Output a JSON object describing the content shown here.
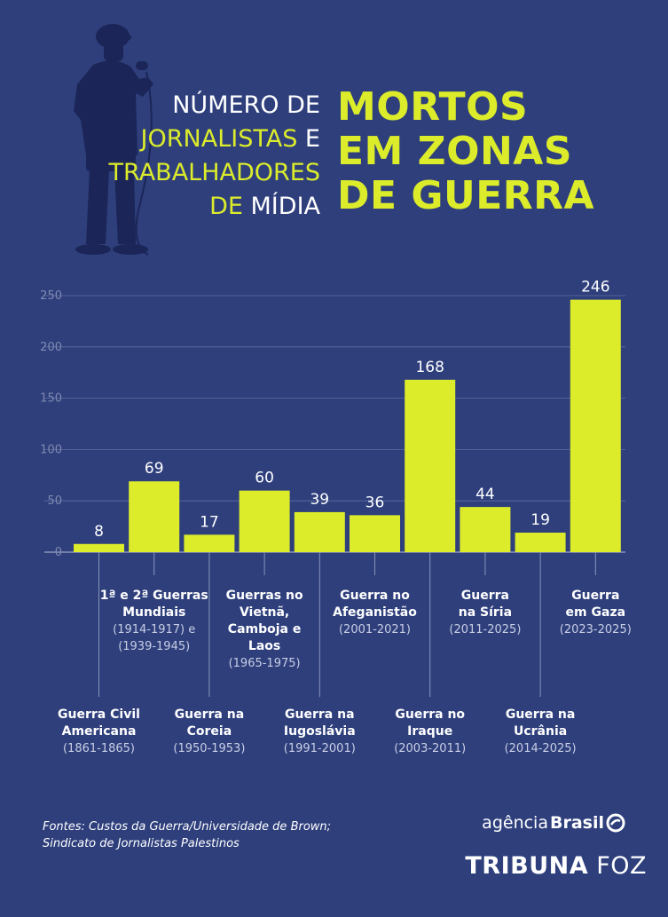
{
  "header": {
    "left_lines": [
      {
        "text": "NÚMERO DE",
        "color": "white"
      },
      {
        "text": "JORNALISTAS",
        "color": "yellow",
        "suffix": " E"
      },
      {
        "text": "TRABALHADORES",
        "color": "yellow"
      },
      {
        "text": "DE MÍDIA",
        "color": "yellow_white"
      }
    ],
    "line1": "NÚMERO DE",
    "line2a": "JORNALISTAS",
    "line2b": " E",
    "line3": "TRABALHADORES",
    "line4a": "DE ",
    "line4b": "MÍDIA",
    "right_lines": [
      "MORTOS",
      "EM ZONAS",
      "DE GUERRA"
    ]
  },
  "colors": {
    "background": "#2e3f7c",
    "accent": "#dcec2b",
    "axis": "#8a94b8",
    "silhouette": "#1b2557"
  },
  "chart_data": {
    "type": "bar",
    "ylim": [
      0,
      250
    ],
    "yticks": [
      "0",
      "50",
      "100",
      "150",
      "200",
      "250"
    ],
    "grid": true,
    "categories": [
      {
        "name": [
          "Guerra Civil",
          "Americana"
        ],
        "period": [
          "(1861-1865)"
        ]
      },
      {
        "name": [
          "1ª e 2ª Guerras",
          "Mundiais"
        ],
        "period": [
          "(1914-1917) e",
          "(1939-1945)"
        ]
      },
      {
        "name": [
          "Guerra na",
          "Coreia"
        ],
        "period": [
          "(1950-1953)"
        ]
      },
      {
        "name": [
          "Guerras no",
          "Vietnã,",
          "Camboja e",
          "Laos"
        ],
        "period": [
          "(1965-1975)"
        ]
      },
      {
        "name": [
          "Guerra na",
          "Iugoslávia"
        ],
        "period": [
          "(1991-2001)"
        ]
      },
      {
        "name": [
          "Guerra no",
          "Afeganistão"
        ],
        "period": [
          "(2001-2021)"
        ]
      },
      {
        "name": [
          "Guerra no",
          "Iraque"
        ],
        "period": [
          "(2003-2011)"
        ]
      },
      {
        "name": [
          "Guerra",
          "na Síria"
        ],
        "period": [
          "(2011-2025)"
        ]
      },
      {
        "name": [
          "Guerra na",
          "Ucrânia"
        ],
        "period": [
          "(2014-2025)"
        ]
      },
      {
        "name": [
          "Guerra",
          "em Gaza"
        ],
        "period": [
          "(2023-2025)"
        ]
      }
    ],
    "values": [
      8,
      69,
      17,
      60,
      39,
      36,
      168,
      44,
      19,
      246
    ]
  },
  "sources": {
    "line1": "Fontes:  Custos da Guerra/Universidade de Brown;",
    "line2": "Sindicato de Jornalistas Palestinos"
  },
  "branding": {
    "agencia_a": "agência",
    "agencia_b": "Brasil",
    "tribuna_a": "TRIBUNA",
    "tribuna_b": " FOZ"
  }
}
